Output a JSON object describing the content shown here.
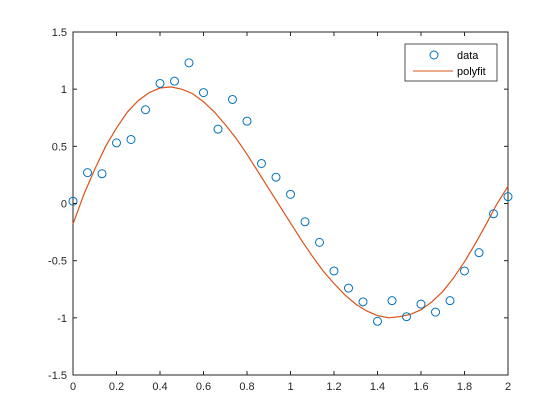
{
  "chart_data": {
    "type": "scatter",
    "title": "",
    "xlabel": "",
    "ylabel": "",
    "xlim": [
      0,
      2
    ],
    "ylim": [
      -1.5,
      1.5
    ],
    "x_ticks": [
      0,
      0.2,
      0.4,
      0.6,
      0.8,
      1,
      1.2,
      1.4,
      1.6,
      1.8,
      2
    ],
    "x_tick_labels": [
      "0",
      "0.2",
      "0.4",
      "0.6",
      "0.8",
      "1",
      "1.2",
      "1.4",
      "1.6",
      "1.8",
      "2"
    ],
    "y_ticks": [
      -1.5,
      -1,
      -0.5,
      0,
      0.5,
      1,
      1.5
    ],
    "y_tick_labels": [
      "-1.5",
      "-1",
      "-0.5",
      "0",
      "0.5",
      "1",
      "1.5"
    ],
    "grid": false,
    "legend_position": "top-right",
    "series": [
      {
        "name": "data",
        "mark": "circle",
        "color": "#0072BD",
        "x": [
          0,
          0.0667,
          0.1333,
          0.2,
          0.2667,
          0.3333,
          0.4,
          0.4667,
          0.5333,
          0.6,
          0.6667,
          0.7333,
          0.8,
          0.8667,
          0.9333,
          1.0,
          1.0667,
          1.1333,
          1.2,
          1.2667,
          1.3333,
          1.4,
          1.4667,
          1.5333,
          1.6,
          1.6667,
          1.7333,
          1.8,
          1.8667,
          1.9333,
          2.0
        ],
        "y": [
          0.02,
          0.27,
          0.26,
          0.53,
          0.56,
          0.82,
          1.05,
          1.07,
          1.23,
          0.97,
          0.65,
          0.91,
          0.72,
          0.35,
          0.23,
          0.08,
          -0.16,
          -0.34,
          -0.59,
          -0.74,
          -0.86,
          -1.03,
          -0.85,
          -0.99,
          -0.88,
          -0.95,
          -0.85,
          -0.59,
          -0.43,
          -0.09,
          0.06
        ]
      },
      {
        "name": "polyfit",
        "mark": "line",
        "color": "#D95319",
        "x": [
          0,
          0.05,
          0.1,
          0.15,
          0.2,
          0.25,
          0.3,
          0.35,
          0.4,
          0.45,
          0.5,
          0.55,
          0.6,
          0.65,
          0.7,
          0.75,
          0.8,
          0.85,
          0.9,
          0.95,
          1.0,
          1.05,
          1.1,
          1.15,
          1.2,
          1.25,
          1.3,
          1.35,
          1.4,
          1.45,
          1.5,
          1.55,
          1.6,
          1.65,
          1.7,
          1.75,
          1.8,
          1.85,
          1.9,
          1.95,
          2.0
        ],
        "y": [
          -0.18,
          0.08,
          0.3,
          0.5,
          0.66,
          0.8,
          0.9,
          0.97,
          1.01,
          1.02,
          1.0,
          0.96,
          0.89,
          0.8,
          0.69,
          0.57,
          0.43,
          0.28,
          0.13,
          -0.02,
          -0.17,
          -0.32,
          -0.46,
          -0.59,
          -0.7,
          -0.8,
          -0.88,
          -0.94,
          -0.98,
          -1.0,
          -0.99,
          -0.97,
          -0.93,
          -0.86,
          -0.77,
          -0.65,
          -0.51,
          -0.35,
          -0.18,
          0.0,
          0.15
        ]
      }
    ]
  }
}
